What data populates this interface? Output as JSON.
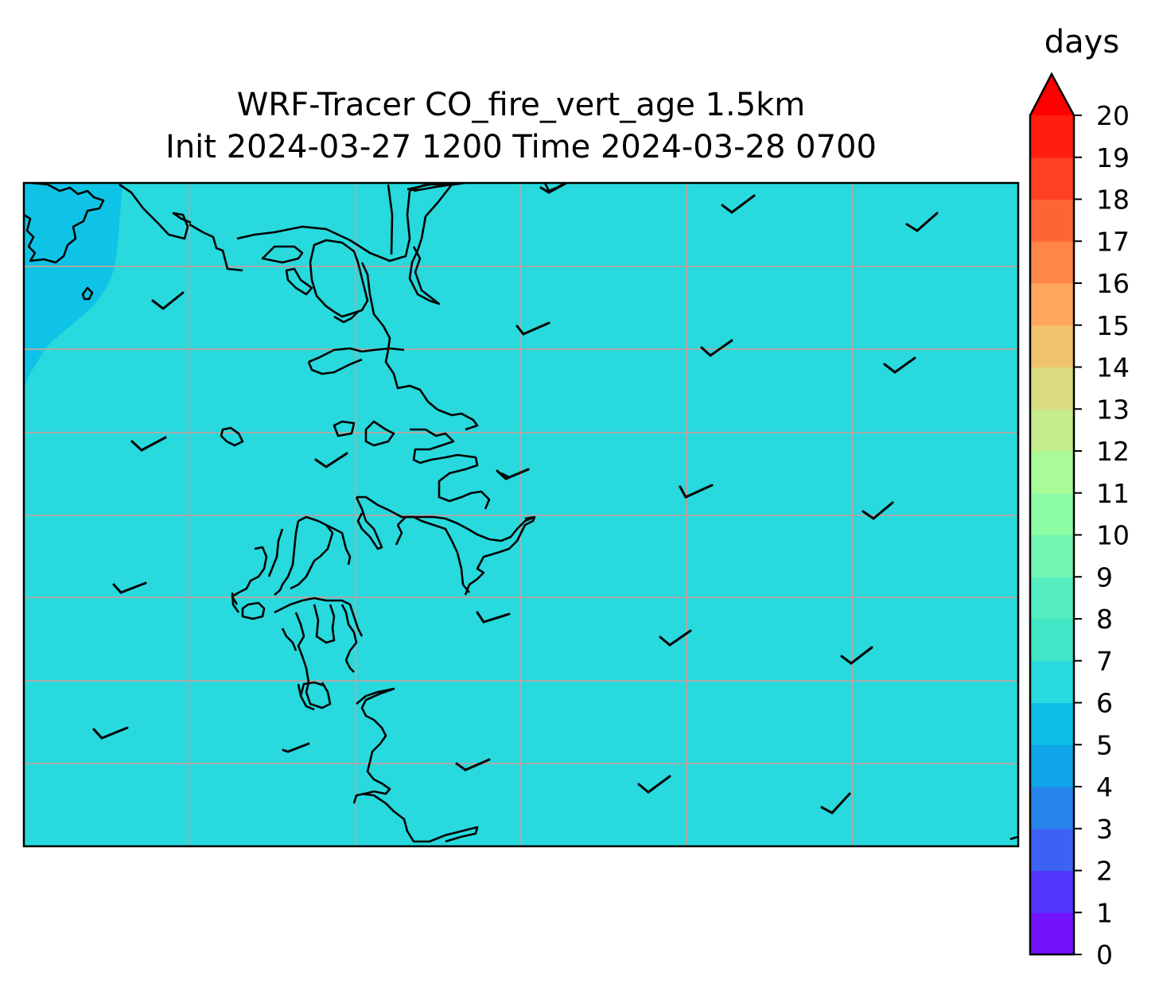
{
  "title": {
    "line1": "WRF-Tracer CO_fire_vert_age 1.5km",
    "line2": "Init 2024-03-27 1200 Time 2024-03-28 0700"
  },
  "colorbar": {
    "label": "days",
    "levels": [
      0,
      1,
      2,
      3,
      4,
      5,
      6,
      7,
      8,
      9,
      10,
      11,
      12,
      13,
      14,
      15,
      16,
      17,
      18,
      19,
      20
    ],
    "tick_labels": [
      "0",
      "1",
      "2",
      "3",
      "4",
      "5",
      "6",
      "7",
      "8",
      "9",
      "10",
      "11",
      "12",
      "13",
      "14",
      "15",
      "16",
      "17",
      "18",
      "19",
      "20"
    ],
    "colors": [
      "#7312fd",
      "#5236fb",
      "#3c62f3",
      "#2684eb",
      "#0fa5e8",
      "#0dbfe8",
      "#28d9dd",
      "#40e6c5",
      "#55eec0",
      "#72f7b3",
      "#8cfca5",
      "#a8fb97",
      "#c4ec8a",
      "#dbdb7f",
      "#f2c36f",
      "#fea65c",
      "#ff8647",
      "#ff6436",
      "#ff4122",
      "#ff1e10"
    ],
    "extend_color": "#ff0000",
    "extend": "max"
  },
  "map": {
    "fill_color": "#28d9dd",
    "lower_fill_color": "#0fc3e6",
    "gridline_color": "#aaaaaa",
    "coastline_color": "#000000",
    "wind_barb_color": "#000000"
  }
}
